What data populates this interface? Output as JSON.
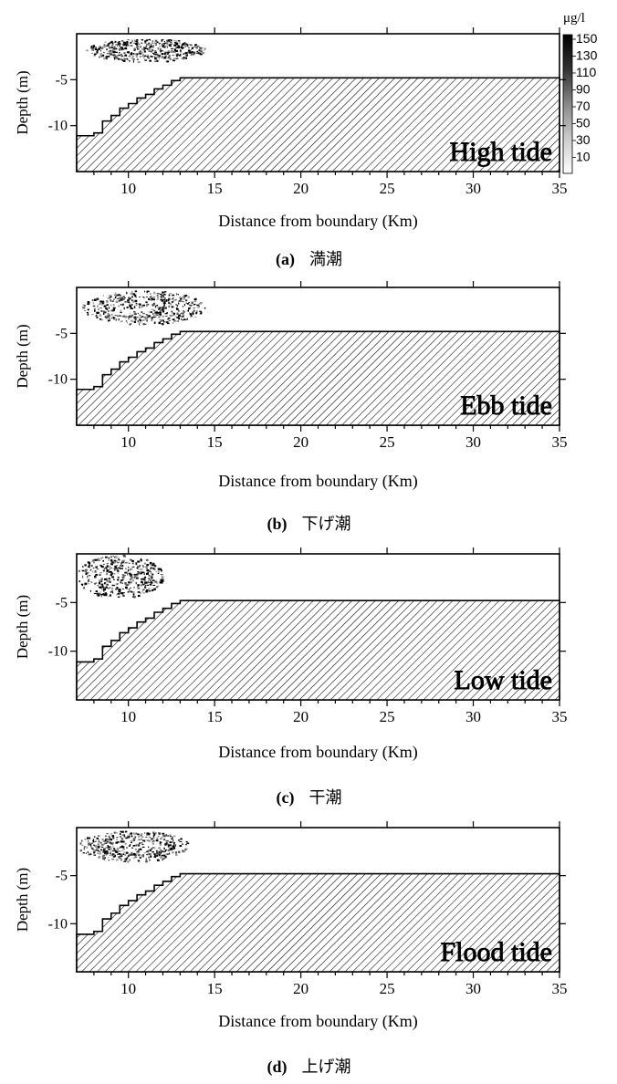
{
  "unit_label": "μg/l",
  "legend_ticks": [
    "150",
    "130",
    "110",
    "90",
    "70",
    "50",
    "30",
    "10"
  ],
  "chart_data": [
    {
      "type": "area",
      "panel": "(a)",
      "caption": "満潮",
      "tide_label": "High tide",
      "xlabel": "Distance from boundary (Km)",
      "ylabel": "Depth (m)",
      "xlim": [
        7,
        35
      ],
      "ylim": [
        -15,
        0
      ],
      "xticks": [
        10,
        15,
        20,
        25,
        30,
        35
      ],
      "yticks": [
        -5,
        -10
      ],
      "bed_profile": {
        "x": [
          7,
          8,
          8.5,
          9,
          9.5,
          10,
          10.5,
          11,
          11.5,
          12,
          12.5,
          13,
          35
        ],
        "y": [
          -11.1,
          -10.8,
          -9.5,
          -8.9,
          -8.1,
          -7.6,
          -7.0,
          -6.6,
          -6.0,
          -5.6,
          -5.1,
          -4.8,
          -4.8
        ]
      },
      "concentration_patch": {
        "x_range": [
          7.5,
          14.5
        ],
        "depth_range": [
          -0.5,
          -3.0
        ],
        "level_range": [
          10,
          50
        ]
      }
    },
    {
      "type": "area",
      "panel": "(b)",
      "caption": "下げ潮",
      "tide_label": "Ebb tide",
      "xlabel": "Distance from boundary (Km)",
      "ylabel": "Depth (m)",
      "xlim": [
        7,
        35
      ],
      "ylim": [
        -15,
        0
      ],
      "xticks": [
        10,
        15,
        20,
        25,
        30,
        35
      ],
      "yticks": [
        -5,
        -10
      ],
      "bed_profile": {
        "x": [
          7,
          8,
          8.5,
          9,
          9.5,
          10,
          10.5,
          11,
          11.5,
          12,
          12.5,
          13,
          35
        ],
        "y": [
          -11.1,
          -10.8,
          -9.5,
          -8.9,
          -8.1,
          -7.6,
          -7.0,
          -6.6,
          -6.0,
          -5.6,
          -5.1,
          -4.8,
          -4.8
        ]
      },
      "concentration_patch": {
        "x_range": [
          7.3,
          14.5
        ],
        "depth_range": [
          -0.3,
          -4.0
        ],
        "level_range": [
          10,
          50
        ]
      }
    },
    {
      "type": "area",
      "panel": "(c)",
      "caption": "干潮",
      "tide_label": "Low tide",
      "xlabel": "Distance from boundary (Km)",
      "ylabel": "Depth (m)",
      "xlim": [
        7,
        35
      ],
      "ylim": [
        -15,
        0
      ],
      "xticks": [
        10,
        15,
        20,
        25,
        30,
        35
      ],
      "yticks": [
        -5,
        -10
      ],
      "bed_profile": {
        "x": [
          7,
          8,
          8.5,
          9,
          9.5,
          10,
          10.5,
          11,
          11.5,
          12,
          12.5,
          13,
          35
        ],
        "y": [
          -11.1,
          -10.8,
          -9.5,
          -8.9,
          -8.1,
          -7.6,
          -7.0,
          -6.6,
          -6.0,
          -5.6,
          -5.1,
          -4.8,
          -4.8
        ]
      },
      "concentration_patch": {
        "x_range": [
          7.0,
          12.0
        ],
        "depth_range": [
          0,
          -4.5
        ],
        "level_range": [
          10,
          50
        ]
      }
    },
    {
      "type": "area",
      "panel": "(d)",
      "caption": "上げ潮",
      "tide_label": "Flood tide",
      "xlabel": "Distance from boundary (Km)",
      "ylabel": "Depth (m)",
      "xlim": [
        7,
        35
      ],
      "ylim": [
        -15,
        0
      ],
      "xticks": [
        10,
        15,
        20,
        25,
        30,
        35
      ],
      "yticks": [
        -5,
        -10
      ],
      "bed_profile": {
        "x": [
          7,
          8,
          8.5,
          9,
          9.5,
          10,
          10.5,
          11,
          11.5,
          12,
          12.5,
          13,
          35
        ],
        "y": [
          -11.1,
          -10.8,
          -9.5,
          -8.9,
          -8.1,
          -7.6,
          -7.0,
          -6.6,
          -6.0,
          -5.6,
          -5.1,
          -4.8,
          -4.8
        ]
      },
      "concentration_patch": {
        "x_range": [
          7.0,
          13.5
        ],
        "depth_range": [
          -0.3,
          -3.5
        ],
        "level_range": [
          10,
          70
        ]
      }
    }
  ]
}
